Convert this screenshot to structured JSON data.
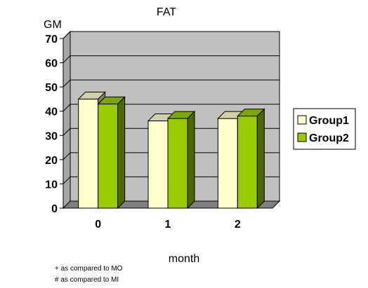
{
  "chart_data": {
    "type": "bar",
    "title": "FAT",
    "ylabel": "GM",
    "xlabel": "month",
    "categories": [
      "0",
      "1",
      "2"
    ],
    "series": [
      {
        "name": "Group1",
        "values": [
          45,
          36,
          37
        ]
      },
      {
        "name": "Group2",
        "values": [
          43,
          37,
          38
        ]
      }
    ],
    "ylim": [
      0,
      70
    ],
    "yticks": [
      "0",
      "10",
      "20",
      "30",
      "40",
      "50",
      "60",
      "70"
    ],
    "grid": true,
    "legend_position": "right",
    "colors": {
      "Group1": "#ffffcc",
      "Group2": "#99cc00",
      "wall": "#c0c0c0",
      "floor": "#808080"
    }
  },
  "notes": [
    "+ as compared to MO",
    "# as compared to MI"
  ]
}
